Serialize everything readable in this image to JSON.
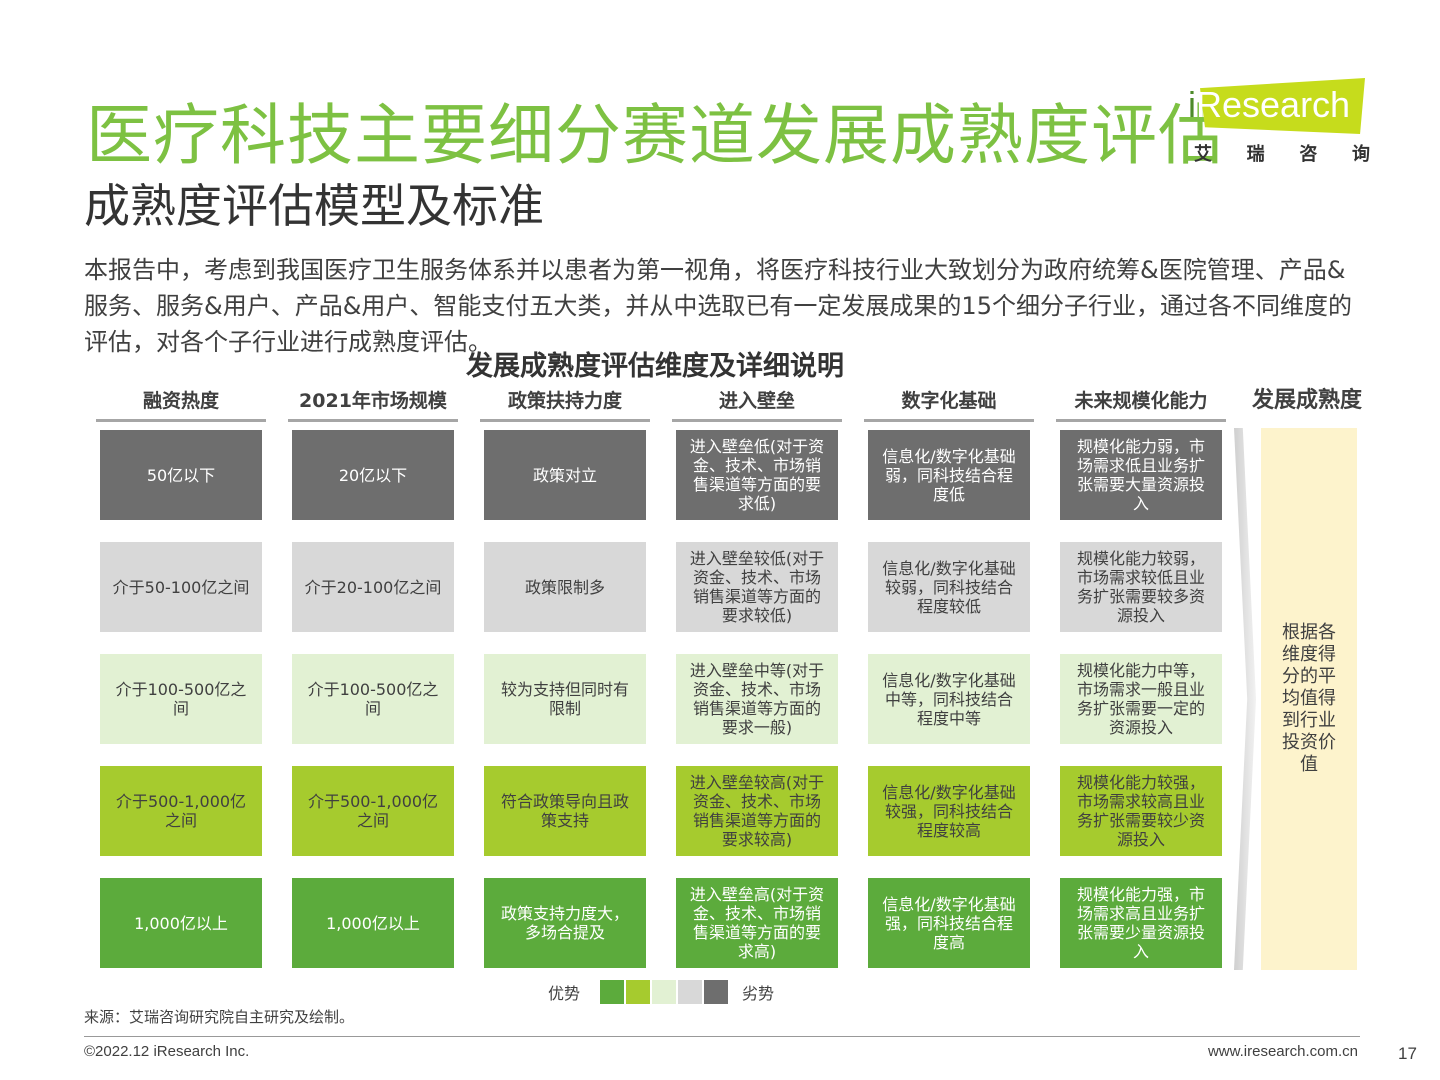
{
  "title": "医疗科技主要细分赛道发展成熟度评估",
  "subtitle": "成熟度评估模型及标准",
  "logo": {
    "brand_i": "i",
    "brand_rest": "Research",
    "sub": [
      "艾",
      "瑞",
      "咨",
      "询"
    ]
  },
  "intro": "本报告中，考虑到我国医疗卫生服务体系并以患者为第一视角，将医疗科技行业大致划分为政府统筹&医院管理、产品&服务、服务&用户、产品&用户、智能支付五大类，并从中选取已有一定发展成果的15个细分子行业，通过各不同维度的评估，对各个子行业进行成熟度评估。",
  "table_title": "发展成熟度评估维度及详细说明",
  "columns": [
    "融资热度",
    "2021年市场规模",
    "政策扶持力度",
    "进入壁垒",
    "数字化基础",
    "未来规模化能力"
  ],
  "maturity_header": "发展成熟度",
  "rows": [
    [
      "50亿以下",
      "20亿以下",
      "政策对立",
      "进入壁垒低(对于资金、技术、市场销售渠道等方面的要求低)",
      "信息化/数字化基础弱，同科技结合程度低",
      "规模化能力弱，市场需求低且业务扩张需要大量资源投入"
    ],
    [
      "介于50-100亿之间",
      "介于20-100亿之间",
      "政策限制多",
      "进入壁垒较低(对于资金、技术、市场销售渠道等方面的要求较低)",
      "信息化/数字化基础较弱，同科技结合程度较低",
      "规模化能力较弱，市场需求较低且业务扩张需要较多资源投入"
    ],
    [
      "介于100-500亿之间",
      "介于100-500亿之间",
      "较为支持但同时有限制",
      "进入壁垒中等(对于资金、技术、市场销售渠道等方面的要求一般)",
      "信息化/数字化基础中等，同科技结合程度中等",
      "规模化能力中等，市场需求一般且业务扩张需要一定的资源投入"
    ],
    [
      "介于500-1,000亿之间",
      "介于500-1,000亿之间",
      "符合政策导向且政策支持",
      "进入壁垒较高(对于资金、技术、市场销售渠道等方面的要求较高)",
      "信息化/数字化基础较强，同科技结合程度较高",
      "规模化能力较强，市场需求较高且业务扩张需要较少资源投入"
    ],
    [
      "1,000亿以上",
      "1,000亿以上",
      "政策支持力度大，多场合提及",
      "进入壁垒高(对于资金、技术、市场销售渠道等方面的要求高)",
      "信息化/数字化基础强，同科技结合程度高",
      "规模化能力强，市场需求高且业务扩张需要少量资源投入"
    ]
  ],
  "maturity_text": "根据各维度得分的平均值得到行业投资价值",
  "legend": {
    "left": "优势",
    "right": "劣势",
    "colors": [
      "#5cab3c",
      "#a6cb2e",
      "#e2f1d3",
      "#d8d8d8",
      "#6e6e6e"
    ]
  },
  "source": "来源：艾瑞咨询研究院自主研究及绘制。",
  "copyright": "©2022.12 iResearch Inc.",
  "website": "www.iresearch.com.cn",
  "page_number": "17"
}
